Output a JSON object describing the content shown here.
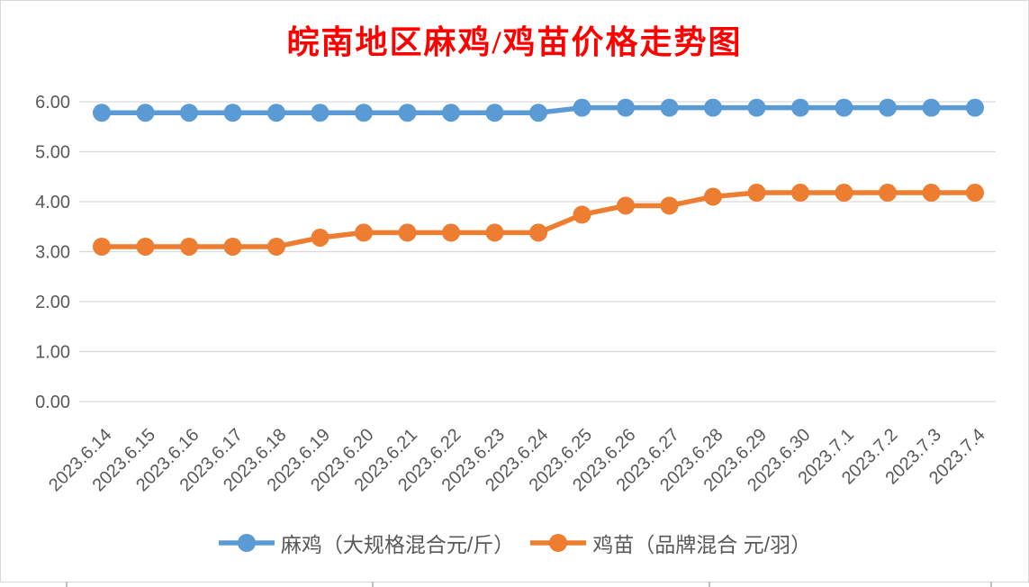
{
  "window": {
    "background_color": "#FFFFFF",
    "frame_border_color": "#D9D9D9"
  },
  "chart_data": {
    "type": "line",
    "title": "皖南地区麻鸡/鸡苗价格走势图",
    "title_color": "#FF0000",
    "categories": [
      "2023.6.14",
      "2023.6.15",
      "2023.6.16",
      "2023.6.17",
      "2023.6.18",
      "2023.6.19",
      "2023.6.20",
      "2023.6.21",
      "2023.6.22",
      "2023.6.23",
      "2023.6.24",
      "2023.6.25",
      "2023.6.26",
      "2023.6.27",
      "2023.6.28",
      "2023.6.29",
      "2023.6.30",
      "2023.7.1",
      "2023.7.2",
      "2023.7.3",
      "2023.7.4"
    ],
    "series": [
      {
        "name": "麻鸡（大规格混合元/斤）",
        "color": "#5B9BD5",
        "values": [
          5.78,
          5.78,
          5.78,
          5.78,
          5.78,
          5.78,
          5.78,
          5.78,
          5.78,
          5.78,
          5.78,
          5.88,
          5.88,
          5.88,
          5.88,
          5.88,
          5.88,
          5.88,
          5.88,
          5.88,
          5.88
        ]
      },
      {
        "name": "鸡苗（品牌混合 元/羽）",
        "color": "#ED7D31",
        "values": [
          3.1,
          3.1,
          3.1,
          3.1,
          3.1,
          3.28,
          3.38,
          3.38,
          3.38,
          3.38,
          3.38,
          3.74,
          3.92,
          3.92,
          4.1,
          4.18,
          4.18,
          4.18,
          4.18,
          4.18,
          4.18
        ]
      }
    ],
    "y_ticks": [
      "6.00",
      "5.00",
      "4.00",
      "3.00",
      "2.00",
      "1.00",
      "0.00"
    ],
    "ylim": [
      0,
      6
    ],
    "xlabel": "",
    "ylabel": "",
    "grid": true,
    "gridline_color": "#D9D9D9",
    "axis_text_color": "#595959",
    "x_label_rotation_deg": 45,
    "legend_position": "bottom"
  }
}
